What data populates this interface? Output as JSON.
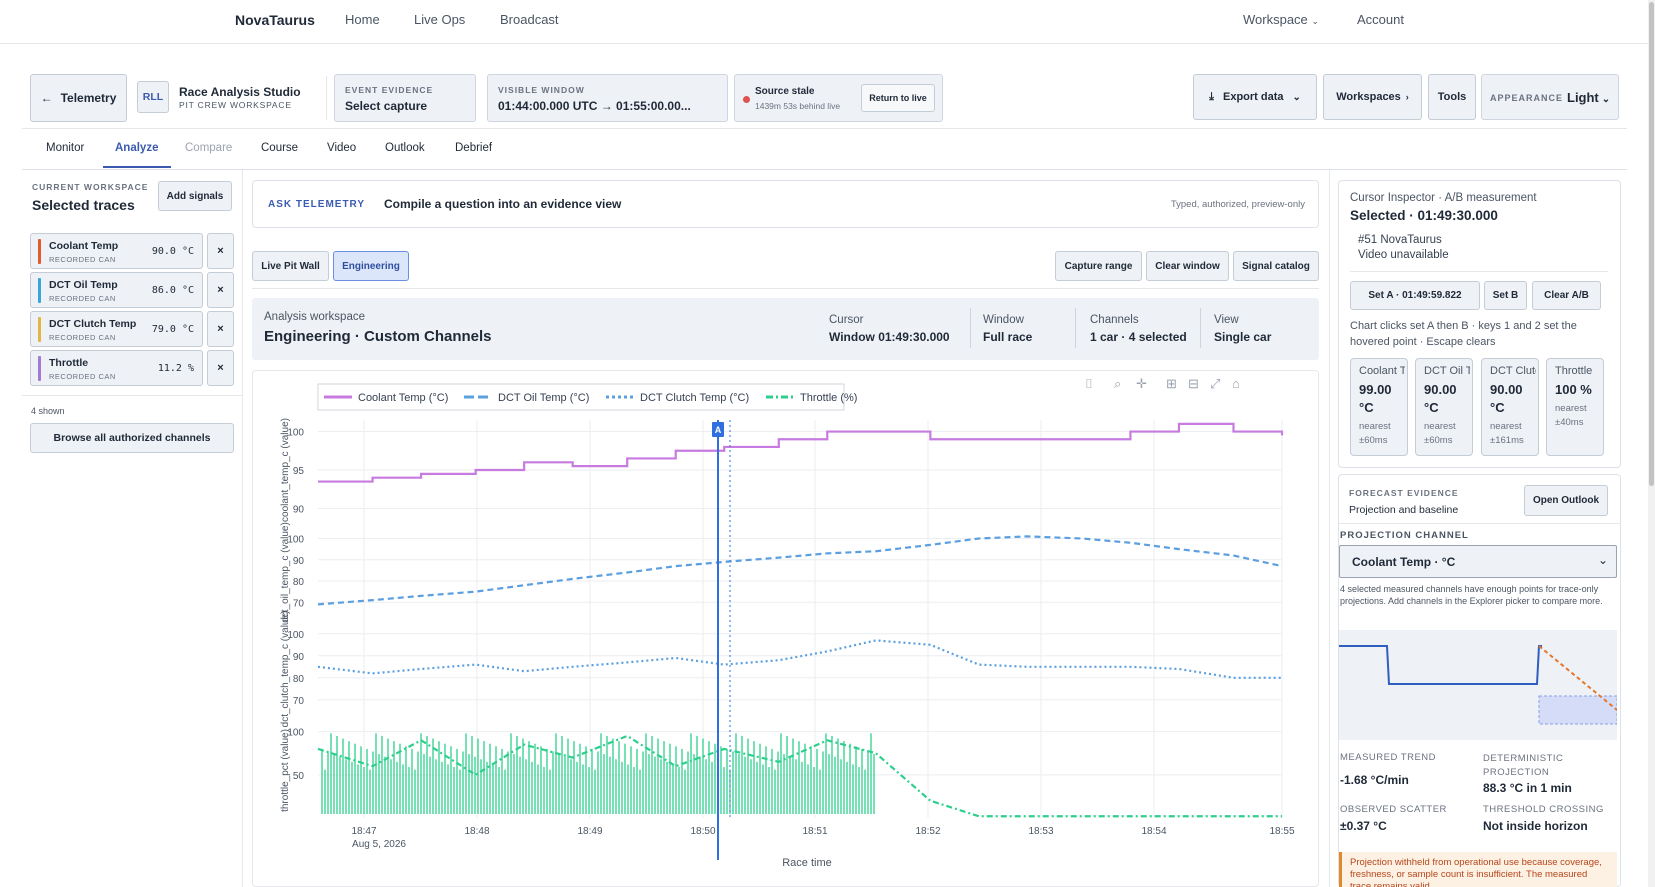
{
  "topnav": {
    "brand": "NovaTaurus",
    "links": [
      "Home",
      "Live Ops",
      "Broadcast"
    ],
    "workspace": "Workspace",
    "account": "Account"
  },
  "header": {
    "back": "Telemetry",
    "badge": "RLL",
    "studio_title": "Race Analysis Studio",
    "studio_sub": "PIT CREW WORKSPACE",
    "event_label": "EVENT EVIDENCE",
    "event_value": "Select capture",
    "window_label": "VISIBLE WINDOW",
    "window_value": "01:44:00.000 UTC → 01:55:00.00...",
    "source_title": "Source stale",
    "source_sub": "1439m 53s behind live",
    "return_live": "Return to live",
    "export": "Export data",
    "workspaces": "Workspaces",
    "tools": "Tools",
    "appearance_label": "APPEARANCE",
    "appearance_value": "Light"
  },
  "tabs": [
    "Monitor",
    "Analyze",
    "Compare",
    "Course",
    "Video",
    "Outlook",
    "Debrief"
  ],
  "sidebar": {
    "label": "CURRENT WORKSPACE",
    "title": "Selected traces",
    "add": "Add signals",
    "channels": [
      {
        "name": "Coolant Temp",
        "source": "RECORDED CAN",
        "value": "90.0 °C",
        "color": "#e15b2d"
      },
      {
        "name": "DCT Oil Temp",
        "source": "RECORDED CAN",
        "value": "86.0 °C",
        "color": "#3aa5d8"
      },
      {
        "name": "DCT Clutch Temp",
        "source": "RECORDED CAN",
        "value": "79.0 °C",
        "color": "#e3b548"
      },
      {
        "name": "Throttle",
        "source": "RECORDED CAN",
        "value": "11.2 %",
        "color": "#a07ad6"
      }
    ],
    "remove": "×",
    "shown": "4 shown",
    "browse": "Browse all authorized channels"
  },
  "ask": {
    "label": "ASK TELEMETRY",
    "prompt": "Compile a question into an evidence view",
    "note": "Typed, authorized, preview-only"
  },
  "toolbar": {
    "live": "Live Pit Wall",
    "engineering": "Engineering",
    "capture": "Capture range",
    "clear": "Clear window",
    "catalog": "Signal catalog"
  },
  "workspace": {
    "label": "Analysis workspace",
    "title": "Engineering · Custom Channels",
    "stats": [
      {
        "k": "Cursor",
        "v": "Window 01:49:30.000"
      },
      {
        "k": "Window",
        "v": "Full race"
      },
      {
        "k": "Channels",
        "v": "1 car · 4 selected"
      },
      {
        "k": "View",
        "v": "Single car"
      }
    ]
  },
  "chart_data": {
    "type": "line",
    "legend": [
      "Coolant Temp (°C)",
      "DCT Oil Temp (°C)",
      "DCT Clutch Temp (°C)",
      "Throttle (%)"
    ],
    "colors": {
      "coolant": "#c77be0",
      "oil": "#5b9fe0",
      "clutch": "#5b9fe0",
      "throttle": "#2ecf8d",
      "cursor": "#2f6fe0"
    },
    "x_ticks": [
      "18:47",
      "18:48",
      "18:49",
      "18:50",
      "18:51",
      "18:52",
      "18:53",
      "18:54",
      "18:55"
    ],
    "x_date": "Aug 5, 2026",
    "xlabel": "Race time",
    "cursor_marker": "A",
    "panels": [
      {
        "ylabel": "coolant_temp_c (value)",
        "ticks": [
          90,
          95,
          100
        ],
        "ylim": [
          88.5,
          101.5
        ],
        "x": [
          18.766,
          18.775,
          18.783,
          18.792,
          18.8,
          18.808,
          18.817,
          18.825,
          18.833,
          18.842,
          18.85,
          18.858,
          18.867,
          18.875,
          18.883,
          18.892,
          18.9,
          18.908,
          18.917,
          18.925
        ],
        "values": [
          93.5,
          94,
          94.5,
          95,
          96,
          95.5,
          96.5,
          97.5,
          98,
          99,
          100,
          100,
          99,
          99,
          99,
          99,
          100,
          101,
          100,
          99.5
        ]
      },
      {
        "ylabel": "dct_oil_temp_c (value)",
        "ticks": [
          70,
          80,
          90,
          100
        ],
        "ylim": [
          64,
          104
        ],
        "x": [
          18.766,
          18.775,
          18.783,
          18.792,
          18.8,
          18.808,
          18.817,
          18.825,
          18.833,
          18.842,
          18.85,
          18.858,
          18.867,
          18.875,
          18.883,
          18.892,
          18.9,
          18.908,
          18.917,
          18.925
        ],
        "values": [
          69,
          71,
          73,
          75,
          78,
          81,
          84,
          87,
          89,
          91,
          93,
          94,
          97,
          100,
          101,
          100,
          98,
          95,
          92,
          87
        ]
      },
      {
        "ylabel": "dct_clutch_temp_c (value)",
        "ticks": [
          70,
          80,
          90,
          100
        ],
        "ylim": [
          64,
          104
        ],
        "x": [
          18.766,
          18.775,
          18.783,
          18.792,
          18.8,
          18.808,
          18.817,
          18.825,
          18.833,
          18.842,
          18.85,
          18.858,
          18.867,
          18.875,
          18.883,
          18.892,
          18.9,
          18.908,
          18.917,
          18.925
        ],
        "values": [
          85,
          82,
          84,
          86,
          83,
          85,
          87,
          89,
          86,
          88,
          92,
          97,
          95,
          86,
          85,
          85,
          85,
          84,
          80,
          80
        ]
      },
      {
        "ylabel": "throttle_pct (value)",
        "ticks": [
          50,
          100
        ],
        "ylim": [
          0,
          110
        ],
        "x": [
          18.766,
          18.775,
          18.783,
          18.792,
          18.8,
          18.808,
          18.817,
          18.825,
          18.833,
          18.842,
          18.85,
          18.858,
          18.867,
          18.875,
          18.883,
          18.892,
          18.9,
          18.908,
          18.917,
          18.925
        ],
        "values": [
          80,
          60,
          90,
          50,
          85,
          70,
          95,
          60,
          80,
          65,
          90,
          75,
          20,
          2,
          2,
          2,
          2,
          2,
          2,
          2
        ]
      }
    ]
  },
  "inspector": {
    "title": "Cursor Inspector · A/B measurement",
    "selected": "Selected · 01:49:30.000",
    "car": "#51 NovaTaurus",
    "video": "Video unavailable",
    "seta": "Set A · 01:49:59.822",
    "setb": "Set B",
    "clear": "Clear A/B",
    "help": "Chart clicks set A then B · keys 1 and 2 set the hovered point · Escape clears",
    "cards": [
      {
        "t": "Coolant Temp",
        "v": "99.00 °C",
        "n": "nearest ±60ms"
      },
      {
        "t": "DCT Oil Temp",
        "v": "90.00 °C",
        "n": "nearest ±60ms"
      },
      {
        "t": "DCT Clutch Temp",
        "v": "90.00 °C",
        "n": "nearest ±161ms"
      },
      {
        "t": "Throttle",
        "v": "100 %",
        "n": "nearest ±40ms"
      }
    ]
  },
  "forecast": {
    "label": "FORECAST EVIDENCE",
    "sub": "Projection and baseline",
    "open": "Open Outlook",
    "channel_label": "PROJECTION CHANNEL",
    "channel_value": "Coolant Temp · °C",
    "note": "4 selected measured channels have enough points for trace-only projections. Add channels in the Explorer picker to compare more.",
    "trend_k": "MEASURED TREND",
    "trend_v": "-1.68 °C/min",
    "proj_k": "DETERMINISTIC PROJECTION",
    "proj_v": "88.3 °C in 1 min",
    "scatter_k": "OBSERVED SCATTER",
    "scatter_v": "±0.37 °C",
    "thresh_k": "THRESHOLD CROSSING",
    "thresh_v": "Not inside horizon",
    "warning": "Projection withheld from operational use because coverage, freshness, or sample count is insufficient. The measured trace remains valid."
  }
}
